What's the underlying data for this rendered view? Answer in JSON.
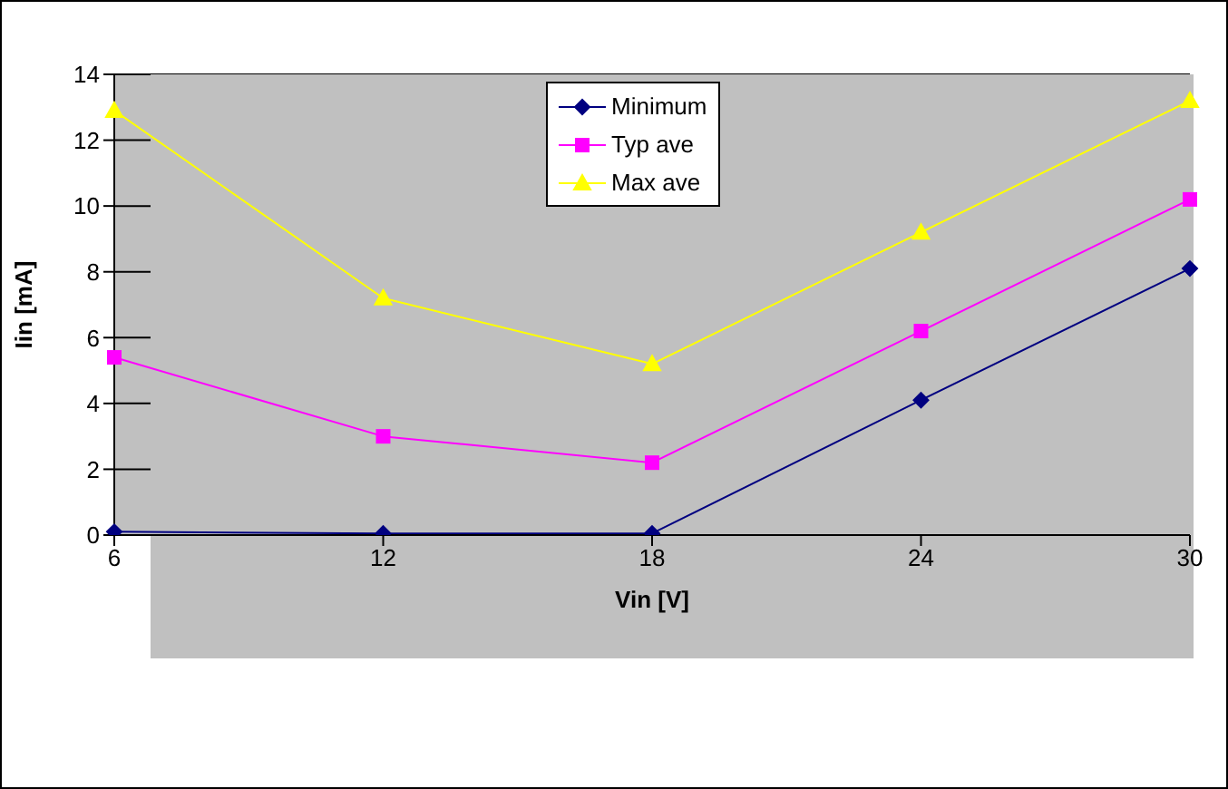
{
  "chart_data": {
    "type": "line",
    "xlabel": "Vin [V]",
    "ylabel": "Iin [mA]",
    "categories": [
      "6",
      "12",
      "18",
      "24",
      "30"
    ],
    "series": [
      {
        "name": "Minimum",
        "color": "#000080",
        "marker": "diamond",
        "values": [
          0.1,
          0.05,
          0.05,
          4.1,
          8.1
        ]
      },
      {
        "name": "Typ ave",
        "color": "#ff00ff",
        "marker": "square",
        "values": [
          5.4,
          3.0,
          2.2,
          6.2,
          10.2
        ]
      },
      {
        "name": "Max ave",
        "color": "#ffff00",
        "marker": "triangle",
        "values": [
          12.9,
          7.2,
          5.2,
          9.2,
          13.2
        ]
      }
    ],
    "ylim": [
      0,
      14
    ],
    "yticks": [
      0,
      2,
      4,
      6,
      8,
      10,
      12,
      14
    ],
    "grid": "y",
    "legend": "top",
    "line_style": "solid"
  }
}
